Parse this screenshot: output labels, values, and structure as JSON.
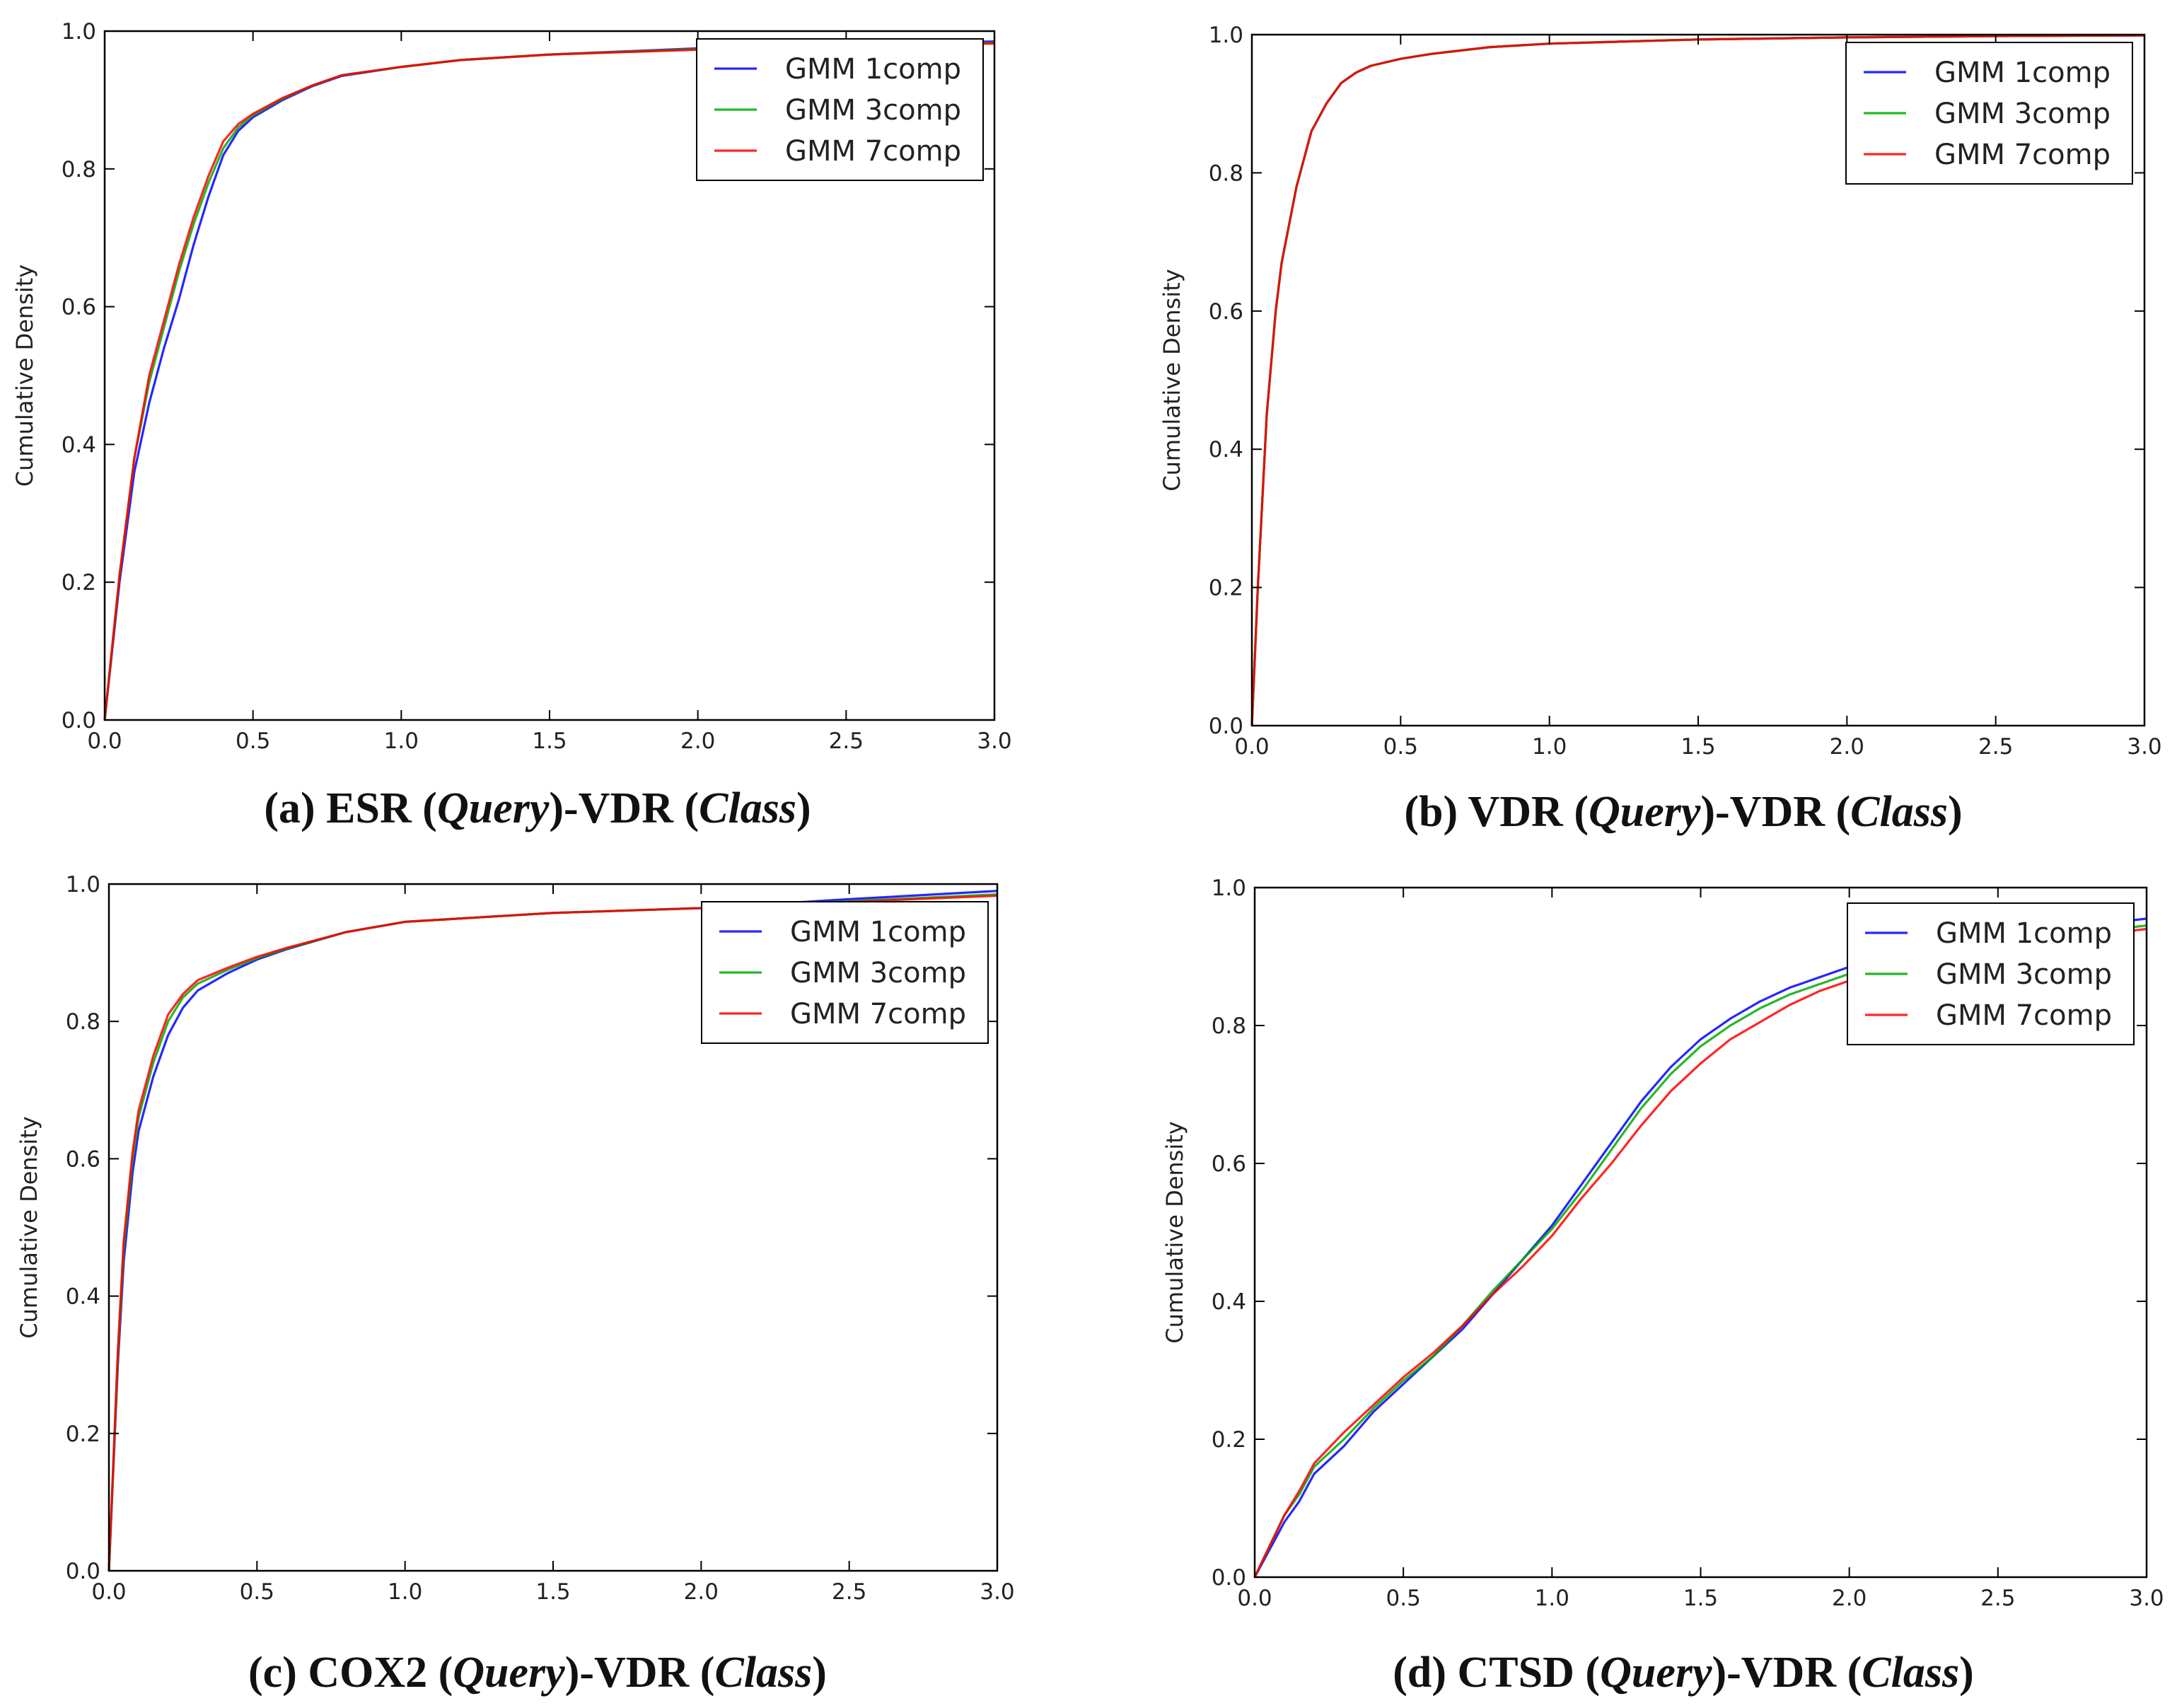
{
  "chart_data": [
    {
      "type": "line",
      "caption": {
        "prefix": "(a) ESR (",
        "query": "Query",
        "mid": ")-VDR (",
        "cls": "Class",
        "suffix": ")"
      },
      "ylabel": "Cumulative Density",
      "xlim": [
        0,
        3.0
      ],
      "ylim": [
        0,
        1.0
      ],
      "xticks": [
        "0.0",
        "0.5",
        "1.0",
        "1.5",
        "2.0",
        "2.5",
        "3.0"
      ],
      "yticks": [
        "0.0",
        "0.2",
        "0.4",
        "0.6",
        "0.8",
        "1.0"
      ],
      "legend_position": "upper-right",
      "series": [
        {
          "name": "GMM 1comp",
          "color": "#0000ff",
          "x": [
            0,
            0.05,
            0.1,
            0.15,
            0.2,
            0.25,
            0.3,
            0.35,
            0.4,
            0.45,
            0.5,
            0.6,
            0.7,
            0.8,
            1.0,
            1.2,
            1.5,
            2.0,
            2.5,
            3.0
          ],
          "y": [
            0,
            0.2,
            0.36,
            0.46,
            0.54,
            0.61,
            0.69,
            0.76,
            0.82,
            0.855,
            0.875,
            0.9,
            0.92,
            0.935,
            0.948,
            0.958,
            0.966,
            0.975,
            0.98,
            0.985
          ]
        },
        {
          "name": "GMM 3comp",
          "color": "#00aa00",
          "x": [
            0,
            0.05,
            0.1,
            0.15,
            0.2,
            0.25,
            0.3,
            0.35,
            0.4,
            0.45,
            0.5,
            0.6,
            0.7,
            0.8,
            1.0,
            1.2,
            1.5,
            2.0,
            2.5,
            3.0
          ],
          "y": [
            0,
            0.21,
            0.38,
            0.49,
            0.57,
            0.65,
            0.72,
            0.78,
            0.83,
            0.86,
            0.878,
            0.902,
            0.921,
            0.936,
            0.948,
            0.958,
            0.966,
            0.974,
            0.979,
            0.983
          ]
        },
        {
          "name": "GMM 7comp",
          "color": "#ff0000",
          "x": [
            0,
            0.05,
            0.1,
            0.15,
            0.2,
            0.25,
            0.3,
            0.35,
            0.4,
            0.45,
            0.5,
            0.6,
            0.7,
            0.8,
            1.0,
            1.2,
            1.5,
            2.0,
            2.5,
            3.0
          ],
          "y": [
            0,
            0.21,
            0.38,
            0.5,
            0.58,
            0.66,
            0.73,
            0.79,
            0.84,
            0.865,
            0.88,
            0.903,
            0.921,
            0.936,
            0.948,
            0.958,
            0.966,
            0.973,
            0.978,
            0.982
          ]
        }
      ]
    },
    {
      "type": "line",
      "caption": {
        "prefix": "(b) VDR (",
        "query": "Query",
        "mid": ")-VDR (",
        "cls": "Class",
        "suffix": ")"
      },
      "ylabel": "Cumulative Density",
      "xlim": [
        0,
        3.0
      ],
      "ylim": [
        0,
        1.0
      ],
      "xticks": [
        "0.0",
        "0.5",
        "1.0",
        "1.5",
        "2.0",
        "2.5",
        "3.0"
      ],
      "yticks": [
        "0.0",
        "0.2",
        "0.4",
        "0.6",
        "0.8",
        "1.0"
      ],
      "legend_position": "upper-right",
      "series": [
        {
          "name": "GMM 1comp",
          "color": "#0000ff",
          "x": [
            0,
            0.02,
            0.05,
            0.08,
            0.1,
            0.15,
            0.2,
            0.25,
            0.3,
            0.35,
            0.4,
            0.5,
            0.6,
            0.8,
            1.0,
            1.5,
            2.0,
            2.5,
            3.0
          ],
          "y": [
            0,
            0.2,
            0.45,
            0.6,
            0.67,
            0.78,
            0.86,
            0.9,
            0.93,
            0.945,
            0.955,
            0.965,
            0.972,
            0.982,
            0.987,
            0.993,
            0.996,
            0.998,
            0.999
          ]
        },
        {
          "name": "GMM 3comp",
          "color": "#00aa00",
          "x": [
            0,
            0.02,
            0.05,
            0.08,
            0.1,
            0.15,
            0.2,
            0.25,
            0.3,
            0.35,
            0.4,
            0.5,
            0.6,
            0.8,
            1.0,
            1.5,
            2.0,
            2.5,
            3.0
          ],
          "y": [
            0,
            0.2,
            0.45,
            0.6,
            0.67,
            0.78,
            0.86,
            0.9,
            0.93,
            0.945,
            0.955,
            0.965,
            0.972,
            0.982,
            0.987,
            0.993,
            0.996,
            0.998,
            0.999
          ]
        },
        {
          "name": "GMM 7comp",
          "color": "#ff0000",
          "x": [
            0,
            0.02,
            0.05,
            0.08,
            0.1,
            0.15,
            0.2,
            0.25,
            0.3,
            0.35,
            0.4,
            0.5,
            0.6,
            0.8,
            1.0,
            1.5,
            2.0,
            2.5,
            3.0
          ],
          "y": [
            0,
            0.2,
            0.45,
            0.6,
            0.67,
            0.78,
            0.86,
            0.9,
            0.93,
            0.945,
            0.955,
            0.965,
            0.972,
            0.982,
            0.987,
            0.993,
            0.996,
            0.998,
            0.999
          ]
        }
      ]
    },
    {
      "type": "line",
      "caption": {
        "prefix": "(c) COX2 (",
        "query": "Query",
        "mid": ")-VDR (",
        "cls": "Class",
        "suffix": ")"
      },
      "ylabel": "Cumulative Density",
      "xlim": [
        0,
        3.0
      ],
      "ylim": [
        0,
        1.0
      ],
      "xticks": [
        "0.0",
        "0.5",
        "1.0",
        "1.5",
        "2.0",
        "2.5",
        "3.0"
      ],
      "yticks": [
        "0.0",
        "0.2",
        "0.4",
        "0.6",
        "0.8",
        "1.0"
      ],
      "legend_position": "upper-right",
      "series": [
        {
          "name": "GMM 1comp",
          "color": "#0000ff",
          "x": [
            0,
            0.03,
            0.05,
            0.08,
            0.1,
            0.15,
            0.2,
            0.25,
            0.3,
            0.4,
            0.5,
            0.6,
            0.8,
            1.0,
            1.5,
            2.0,
            2.5,
            3.0
          ],
          "y": [
            0,
            0.3,
            0.45,
            0.58,
            0.64,
            0.72,
            0.78,
            0.82,
            0.845,
            0.87,
            0.89,
            0.905,
            0.93,
            0.945,
            0.958,
            0.965,
            0.978,
            0.99
          ]
        },
        {
          "name": "GMM 3comp",
          "color": "#00aa00",
          "x": [
            0,
            0.03,
            0.05,
            0.08,
            0.1,
            0.15,
            0.2,
            0.25,
            0.3,
            0.4,
            0.5,
            0.6,
            0.8,
            1.0,
            1.5,
            2.0,
            2.5,
            3.0
          ],
          "y": [
            0,
            0.31,
            0.47,
            0.6,
            0.66,
            0.74,
            0.8,
            0.835,
            0.855,
            0.875,
            0.892,
            0.906,
            0.93,
            0.945,
            0.958,
            0.965,
            0.975,
            0.985
          ]
        },
        {
          "name": "GMM 7comp",
          "color": "#ff0000",
          "x": [
            0,
            0.03,
            0.05,
            0.08,
            0.1,
            0.15,
            0.2,
            0.25,
            0.3,
            0.4,
            0.5,
            0.6,
            0.8,
            1.0,
            1.5,
            2.0,
            2.5,
            3.0
          ],
          "y": [
            0,
            0.32,
            0.48,
            0.61,
            0.67,
            0.75,
            0.81,
            0.84,
            0.86,
            0.878,
            0.894,
            0.907,
            0.93,
            0.945,
            0.958,
            0.965,
            0.974,
            0.983
          ]
        }
      ]
    },
    {
      "type": "line",
      "caption": {
        "prefix": "(d) CTSD (",
        "query": "Query",
        "mid": ")-VDR (",
        "cls": "Class",
        "suffix": ")"
      },
      "ylabel": "Cumulative Density",
      "xlim": [
        0,
        3.0
      ],
      "ylim": [
        0,
        1.0
      ],
      "xticks": [
        "0.0",
        "0.5",
        "1.0",
        "1.5",
        "2.0",
        "2.5",
        "3.0"
      ],
      "yticks": [
        "0.0",
        "0.2",
        "0.4",
        "0.6",
        "0.8",
        "1.0"
      ],
      "legend_position": "upper-right",
      "series": [
        {
          "name": "GMM 1comp",
          "color": "#0000ff",
          "x": [
            0,
            0.05,
            0.1,
            0.15,
            0.2,
            0.3,
            0.4,
            0.5,
            0.6,
            0.7,
            0.8,
            0.9,
            1.0,
            1.1,
            1.2,
            1.3,
            1.4,
            1.5,
            1.6,
            1.7,
            1.8,
            1.9,
            2.0,
            2.2,
            2.4,
            2.6,
            2.8,
            3.0
          ],
          "y": [
            0,
            0.04,
            0.08,
            0.11,
            0.15,
            0.19,
            0.24,
            0.28,
            0.32,
            0.36,
            0.41,
            0.46,
            0.51,
            0.57,
            0.63,
            0.69,
            0.74,
            0.78,
            0.81,
            0.835,
            0.855,
            0.87,
            0.885,
            0.905,
            0.92,
            0.935,
            0.945,
            0.955
          ]
        },
        {
          "name": "GMM 3comp",
          "color": "#00aa00",
          "x": [
            0,
            0.05,
            0.1,
            0.15,
            0.2,
            0.3,
            0.4,
            0.5,
            0.6,
            0.7,
            0.8,
            0.9,
            1.0,
            1.1,
            1.2,
            1.3,
            1.4,
            1.5,
            1.6,
            1.7,
            1.8,
            1.9,
            2.0,
            2.2,
            2.4,
            2.6,
            2.8,
            3.0
          ],
          "y": [
            0,
            0.045,
            0.09,
            0.12,
            0.16,
            0.2,
            0.245,
            0.285,
            0.32,
            0.365,
            0.415,
            0.46,
            0.505,
            0.56,
            0.62,
            0.68,
            0.73,
            0.77,
            0.8,
            0.825,
            0.845,
            0.86,
            0.875,
            0.895,
            0.91,
            0.925,
            0.935,
            0.945
          ]
        },
        {
          "name": "GMM 7comp",
          "color": "#ff0000",
          "x": [
            0,
            0.05,
            0.1,
            0.15,
            0.2,
            0.3,
            0.4,
            0.5,
            0.6,
            0.7,
            0.8,
            0.9,
            1.0,
            1.1,
            1.2,
            1.3,
            1.4,
            1.5,
            1.6,
            1.7,
            1.8,
            1.9,
            2.0,
            2.2,
            2.4,
            2.6,
            2.8,
            3.0
          ],
          "y": [
            0,
            0.045,
            0.09,
            0.125,
            0.165,
            0.21,
            0.25,
            0.29,
            0.325,
            0.365,
            0.41,
            0.45,
            0.495,
            0.55,
            0.6,
            0.655,
            0.705,
            0.745,
            0.78,
            0.805,
            0.83,
            0.85,
            0.865,
            0.89,
            0.905,
            0.92,
            0.93,
            0.94
          ]
        }
      ]
    }
  ]
}
